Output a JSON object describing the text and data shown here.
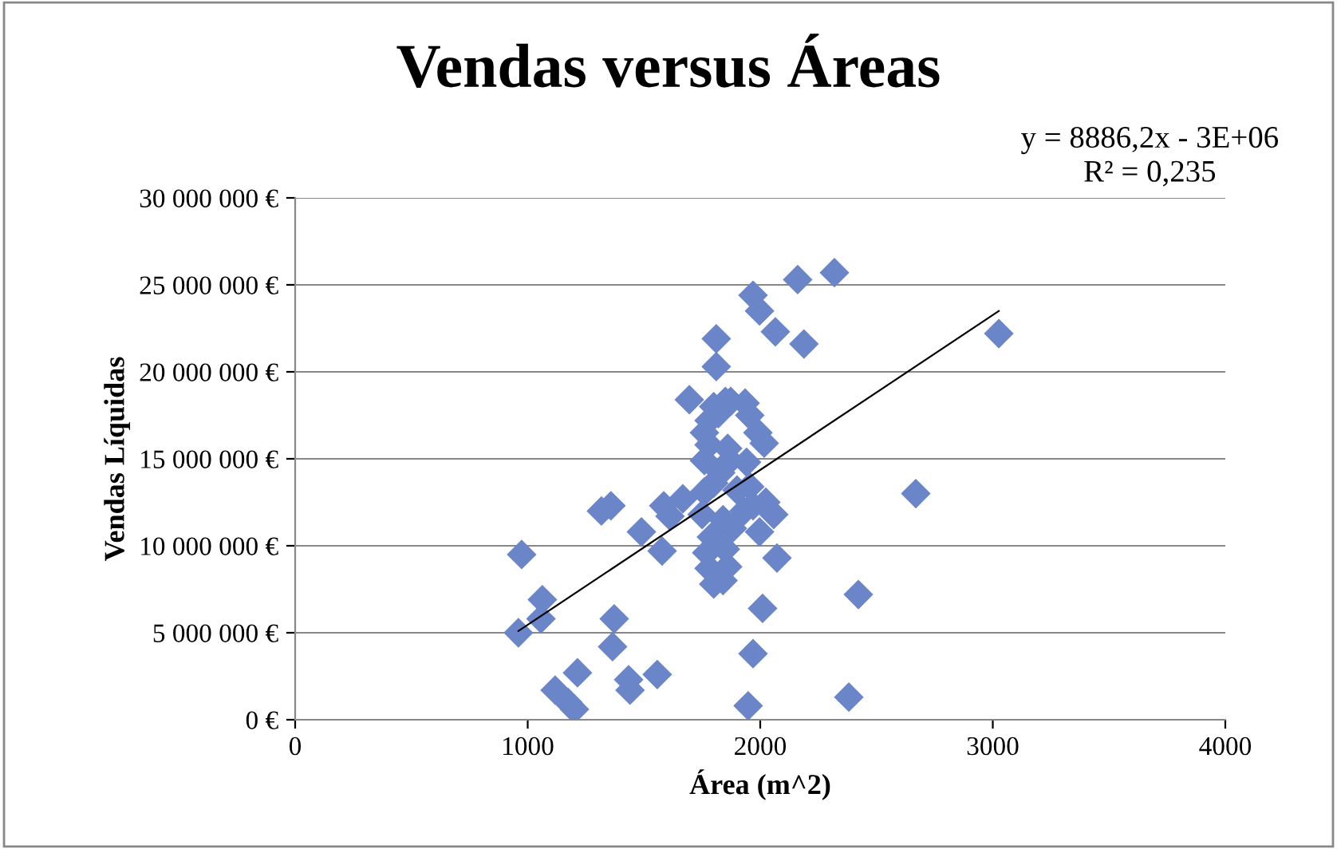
{
  "chart_data": {
    "type": "scatter",
    "title": "Vendas versus Áreas",
    "xlabel": "Área (m^2)",
    "ylabel": "Vendas Líquidas",
    "xlim": [
      0,
      4000
    ],
    "xticks": [
      0,
      1000,
      2000,
      3000,
      4000
    ],
    "ylim": [
      0,
      30000000
    ],
    "yticks": [
      {
        "value": 0,
        "label": "0 €"
      },
      {
        "value": 5000000,
        "label": "5 000 000 €"
      },
      {
        "value": 10000000,
        "label": "10 000 000 €"
      },
      {
        "value": 15000000,
        "label": "15 000 000 €"
      },
      {
        "value": 20000000,
        "label": "20 000 000 €"
      },
      {
        "value": 25000000,
        "label": "25 000 000 €"
      },
      {
        "value": 30000000,
        "label": "30 000 000 €"
      }
    ],
    "grid": "y",
    "legend": false,
    "marker": "diamond",
    "annotations": [
      "y = 8886,2x - 3E+06",
      "R² = 0,235"
    ],
    "series": [
      {
        "color": "#6a86c8",
        "x": [
          960,
          1063,
          974,
          1057,
          1118,
          1173,
          1201,
          1214,
          1317,
          1358,
          1372,
          1365,
          1440,
          1434,
          1557,
          1489,
          1578,
          1585,
          1612,
          1667,
          1695,
          1811,
          1811,
          1935,
          1873,
          1955,
          1990,
          2017,
          1941,
          1955,
          1969,
          2024,
          2058,
          1997,
          2072,
          2010,
          1969,
          1948,
          1969,
          1997,
          2065,
          2161,
          2319,
          2188,
          2381,
          2422,
          2669,
          3026,
          1760,
          1780,
          1800,
          1820,
          1850,
          1780,
          1860,
          1830,
          1870,
          1760,
          1800,
          1760,
          1900,
          1750,
          1840,
          1880,
          1790,
          1770,
          1850,
          1780,
          1860,
          1800,
          1840,
          1930
        ],
        "values": [
          5000000,
          6900000,
          9500000,
          5800000,
          1700000,
          1000000,
          600000,
          2700000,
          12000000,
          12300000,
          5800000,
          4200000,
          1700000,
          2300000,
          2600000,
          10800000,
          9700000,
          12300000,
          11700000,
          12700000,
          18400000,
          21900000,
          20300000,
          18200000,
          18300000,
          17500000,
          16500000,
          15900000,
          14800000,
          13400000,
          12300000,
          12500000,
          11800000,
          10800000,
          9300000,
          6400000,
          3800000,
          800000,
          24400000,
          23500000,
          22300000,
          25300000,
          25700000,
          21600000,
          1300000,
          7200000,
          13000000,
          22200000,
          16500000,
          17200000,
          18000000,
          17600000,
          18300000,
          15800000,
          15600000,
          14200000,
          14900000,
          14900000,
          13600000,
          13100000,
          13200000,
          11800000,
          11500000,
          11000000,
          10500000,
          9600000,
          9800000,
          8700000,
          8800000,
          7800000,
          8000000,
          12000000
        ]
      },
      {
        "type": "line",
        "color": "#000000",
        "marker": "none",
        "line_style": "solid",
        "x": [
          960,
          3026
        ],
        "values": [
          5100000,
          23500000
        ]
      }
    ]
  }
}
